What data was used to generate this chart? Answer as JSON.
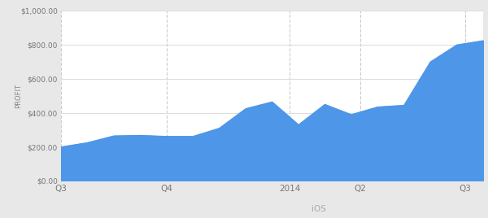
{
  "x_points": [
    0,
    1,
    2,
    3,
    4,
    5,
    6,
    7,
    8,
    9,
    10,
    11,
    12,
    13,
    14,
    15,
    16
  ],
  "y_values": [
    200,
    225,
    265,
    268,
    262,
    262,
    310,
    425,
    465,
    330,
    450,
    390,
    435,
    445,
    700,
    800,
    825
  ],
  "fill_color": "#4d96e8",
  "line_color": "#4d96e8",
  "background_color": "#e8e8e8",
  "plot_bg_color": "#ffffff",
  "ylabel": "PROFIT",
  "yticks": [
    0,
    200,
    400,
    600,
    800,
    1000
  ],
  "ytick_labels": [
    "$0.00",
    "$200.00",
    "$400.00",
    "$600.00",
    "$800.00",
    "$1,000.00"
  ],
  "xtick_positions": [
    0,
    4.0,
    8.67,
    11.33,
    15.33
  ],
  "xtick_labels": [
    "Q3",
    "Q4",
    "2014",
    "Q2",
    "Q3"
  ],
  "ylim": [
    0,
    1000
  ],
  "xlim": [
    0,
    16
  ],
  "legend_suffix": "iOS",
  "legend_color": "#4d96e8",
  "grid_color": "#cccccc",
  "grid_color_h": "#dddddd"
}
